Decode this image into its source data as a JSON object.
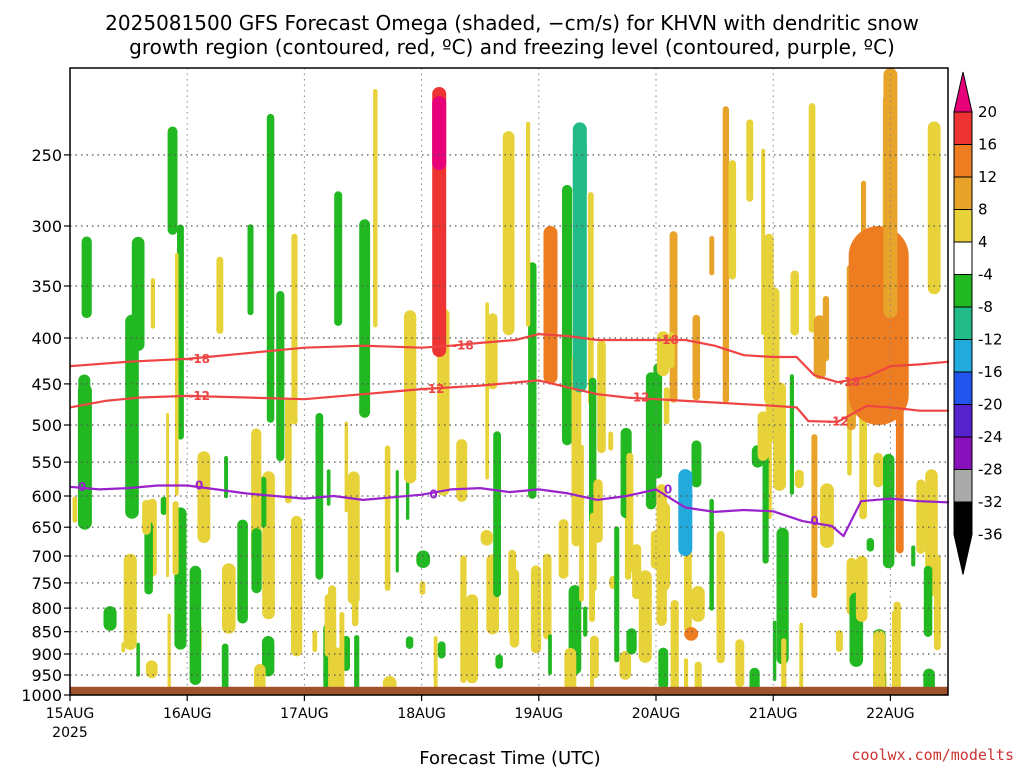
{
  "title": {
    "line1": "2025081500 GFS Forecast Omega (shaded, −cm/s) for KHVN with dendritic snow",
    "line2": "growth region (contoured, red, ºC) and freezing level (contoured, purple, ºC)"
  },
  "xlabel": "Forecast Time (UTC)",
  "credit": "coolwx.com/modelts",
  "colors": {
    "dendritic": "#ee4444",
    "freezing": "#9922cc",
    "terrain": "#a0522d",
    "grid": "#555555"
  },
  "chart_data": {
    "type": "heatmap",
    "variable": "Omega (−cm/s)",
    "x": {
      "type": "time",
      "range": [
        "2025-08-15T00",
        "2025-08-22T12"
      ],
      "ticks": [
        "15AUG",
        "16AUG",
        "17AUG",
        "18AUG",
        "19AUG",
        "20AUG",
        "21AUG",
        "22AUG"
      ],
      "first_tick_year": "2025"
    },
    "y": {
      "label": "",
      "scale": "log",
      "inverted": true,
      "range_hPa": [
        200,
        1000
      ],
      "ticks": [
        250,
        300,
        350,
        400,
        450,
        500,
        550,
        600,
        650,
        700,
        750,
        800,
        850,
        900,
        950,
        1000
      ]
    },
    "grid": true,
    "colorbar": {
      "labels": [
        20,
        16,
        12,
        8,
        4,
        -4,
        -8,
        -12,
        -16,
        -20,
        -24,
        -28,
        -32,
        -36
      ],
      "colors": [
        "#e8007a",
        "#ee3333",
        "#ee7d22",
        "#e8a32a",
        "#e8d23a",
        "#ffffff",
        "#22b822",
        "#22bb88",
        "#22aadd",
        "#2255ee",
        "#5522cc",
        "#8811bb",
        "#aaaaaa",
        "#000000"
      ]
    },
    "contours": [
      {
        "level": -18,
        "color": "#ee4444",
        "label": "-18",
        "points": [
          [
            0,
            430
          ],
          [
            0.5,
            425
          ],
          [
            1,
            422
          ],
          [
            1.5,
            416
          ],
          [
            2,
            410
          ],
          [
            2.5,
            408
          ],
          [
            3,
            410
          ],
          [
            3.25,
            408
          ],
          [
            3.5,
            405
          ],
          [
            3.8,
            402
          ],
          [
            4.0,
            396
          ],
          [
            4.25,
            398
          ],
          [
            4.5,
            402
          ],
          [
            4.75,
            402
          ],
          [
            5.0,
            402
          ],
          [
            5.25,
            402
          ],
          [
            5.5,
            408
          ],
          [
            5.75,
            418
          ],
          [
            6.0,
            420
          ],
          [
            6.2,
            420
          ],
          [
            6.35,
            440
          ],
          [
            6.55,
            448
          ],
          [
            6.8,
            442
          ],
          [
            7.0,
            430
          ],
          [
            7.25,
            428
          ],
          [
            7.5,
            425
          ]
        ],
        "label_positions": [
          1.0,
          3.25,
          5.0,
          6.55
        ]
      },
      {
        "level": -12,
        "color": "#ee4444",
        "label": "-12",
        "points": [
          [
            0,
            478
          ],
          [
            0.3,
            470
          ],
          [
            0.6,
            466
          ],
          [
            1,
            464
          ],
          [
            1.5,
            466
          ],
          [
            2,
            468
          ],
          [
            2.5,
            462
          ],
          [
            3,
            456
          ],
          [
            3.5,
            452
          ],
          [
            4.0,
            446
          ],
          [
            4.25,
            454
          ],
          [
            4.5,
            462
          ],
          [
            4.75,
            466
          ],
          [
            5.0,
            468
          ],
          [
            5.25,
            470
          ],
          [
            5.5,
            472
          ],
          [
            5.75,
            474
          ],
          [
            6.0,
            476
          ],
          [
            6.2,
            478
          ],
          [
            6.3,
            495
          ],
          [
            6.55,
            496
          ],
          [
            6.8,
            476
          ],
          [
            7.0,
            478
          ],
          [
            7.25,
            482
          ],
          [
            7.5,
            482
          ]
        ],
        "label_positions": [
          1.0,
          3.0,
          4.75,
          6.45
        ]
      },
      {
        "level": 0,
        "color": "#9922cc",
        "label": "0",
        "points": [
          [
            0,
            586
          ],
          [
            0.25,
            590
          ],
          [
            0.5,
            588
          ],
          [
            0.75,
            584
          ],
          [
            1.0,
            584
          ],
          [
            1.25,
            590
          ],
          [
            1.5,
            596
          ],
          [
            1.75,
            600
          ],
          [
            2.0,
            604
          ],
          [
            2.25,
            600
          ],
          [
            2.5,
            606
          ],
          [
            2.75,
            602
          ],
          [
            3.0,
            598
          ],
          [
            3.25,
            590
          ],
          [
            3.5,
            588
          ],
          [
            3.75,
            594
          ],
          [
            4.0,
            590
          ],
          [
            4.25,
            596
          ],
          [
            4.5,
            606
          ],
          [
            4.75,
            600
          ],
          [
            5.0,
            590
          ],
          [
            5.25,
            618
          ],
          [
            5.5,
            625
          ],
          [
            5.75,
            622
          ],
          [
            6.0,
            624
          ],
          [
            6.25,
            640
          ],
          [
            6.5,
            648
          ],
          [
            6.6,
            665
          ],
          [
            6.75,
            608
          ],
          [
            7.0,
            604
          ],
          [
            7.25,
            608
          ],
          [
            7.5,
            610
          ]
        ],
        "label_positions": [
          0.0,
          1.0,
          3.0,
          5.0,
          6.25
        ]
      }
    ],
    "omega_regions": [
      {
        "day": 3.15,
        "p_top": 210,
        "p_bot": 420,
        "value": 16
      },
      {
        "day": 3.15,
        "p_top": 215,
        "p_bot": 260,
        "value": 22
      },
      {
        "day": 4.1,
        "p_top": 300,
        "p_bot": 450,
        "value": 13
      },
      {
        "day": 4.35,
        "p_top": 230,
        "p_bot": 460,
        "value": -8
      },
      {
        "day": 4.35,
        "p_top": 240,
        "p_bot": 280,
        "value": -10
      },
      {
        "day": 5.25,
        "p_top": 560,
        "p_bot": 700,
        "value": -14
      },
      {
        "day": 5.3,
        "p_top": 840,
        "p_bot": 870,
        "value": 12
      },
      {
        "day": 6.9,
        "p_top": 300,
        "p_bot": 500,
        "value": 12
      },
      {
        "day": 7.0,
        "p_top": 200,
        "p_bot": 380,
        "value": 8
      }
    ],
    "surface_pressure_hPa": 1015
  }
}
